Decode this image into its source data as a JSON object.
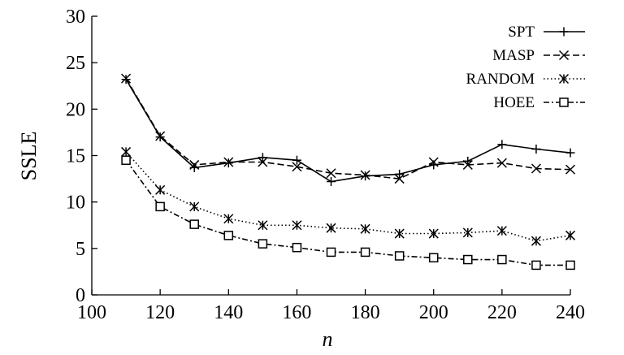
{
  "chart_data": {
    "type": "line",
    "title": "",
    "xlabel": "n",
    "ylabel": "SSLE",
    "xlim": [
      100,
      240
    ],
    "ylim": [
      0,
      30
    ],
    "xticks": [
      100,
      120,
      140,
      160,
      180,
      200,
      220,
      240
    ],
    "yticks": [
      0,
      5,
      10,
      15,
      20,
      25,
      30
    ],
    "x": [
      110,
      120,
      130,
      140,
      150,
      160,
      170,
      180,
      190,
      200,
      210,
      220,
      230,
      240
    ],
    "grid": false,
    "legend_position": "top-right",
    "series": [
      {
        "name": "SPT",
        "marker": "plus",
        "dash": "solid",
        "values": [
          23.2,
          17.0,
          13.7,
          14.2,
          14.8,
          14.5,
          12.2,
          12.8,
          13.0,
          14.0,
          14.4,
          16.2,
          15.7,
          15.3
        ]
      },
      {
        "name": "MASP",
        "marker": "x",
        "dash": "dashed",
        "values": [
          23.3,
          17.1,
          14.0,
          14.3,
          14.3,
          13.8,
          13.1,
          12.9,
          12.5,
          14.3,
          14.0,
          14.2,
          13.6,
          13.5
        ]
      },
      {
        "name": "RANDOM",
        "marker": "star",
        "dash": "dotted",
        "values": [
          15.4,
          11.3,
          9.5,
          8.2,
          7.5,
          7.5,
          7.2,
          7.1,
          6.6,
          6.6,
          6.7,
          6.9,
          5.8,
          6.4
        ]
      },
      {
        "name": "HOEE",
        "marker": "square",
        "dash": "dashdot",
        "values": [
          14.5,
          9.5,
          7.6,
          6.4,
          5.5,
          5.1,
          4.6,
          4.6,
          4.2,
          4.0,
          3.8,
          3.8,
          3.2,
          3.2
        ]
      }
    ]
  }
}
